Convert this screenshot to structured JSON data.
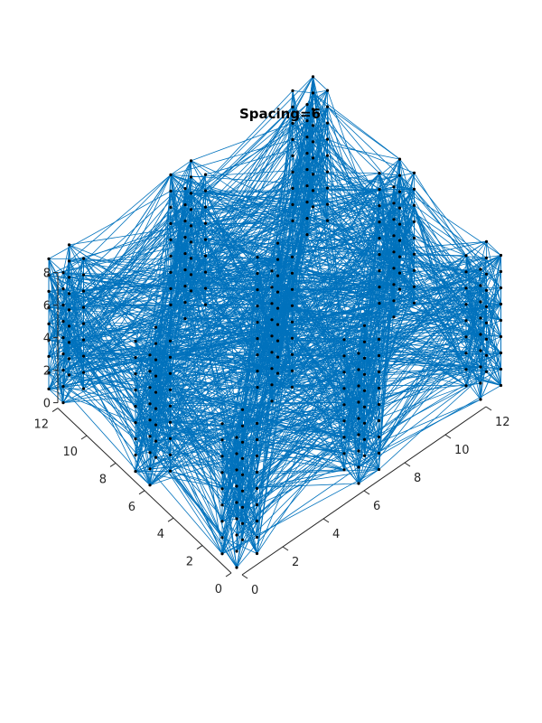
{
  "chart_data": {
    "type": "3d-graph",
    "title": "Spacing=6",
    "x_ticks": [
      "0",
      "2",
      "4",
      "6",
      "8",
      "10",
      "12"
    ],
    "y_ticks": [
      "0",
      "2",
      "4",
      "6",
      "8",
      "10",
      "12"
    ],
    "z_ticks": [
      "0",
      "2",
      "4",
      "6",
      "8"
    ],
    "xlim": [
      0,
      12
    ],
    "ylim": [
      0,
      12
    ],
    "zlim": [
      0,
      8
    ],
    "grid": false,
    "edge_color": "#0072BD",
    "node_color": "#000000",
    "columns": [
      {
        "x": 0,
        "y": 0
      },
      {
        "x": 6,
        "y": 0
      },
      {
        "x": 12,
        "y": 0
      },
      {
        "x": 0,
        "y": 6
      },
      {
        "x": 6,
        "y": 6
      },
      {
        "x": 12,
        "y": 6
      },
      {
        "x": 0,
        "y": 12
      },
      {
        "x": 6,
        "y": 12
      },
      {
        "x": 12,
        "y": 12
      }
    ],
    "column_square_offsets": [
      {
        "dx": 0,
        "dy": 0
      },
      {
        "dx": 1,
        "dy": 0
      },
      {
        "dx": 0,
        "dy": 1
      },
      {
        "dx": 1,
        "dy": 1
      }
    ],
    "z_levels": [
      0,
      1,
      2,
      3,
      4,
      5,
      6,
      7,
      8
    ]
  }
}
